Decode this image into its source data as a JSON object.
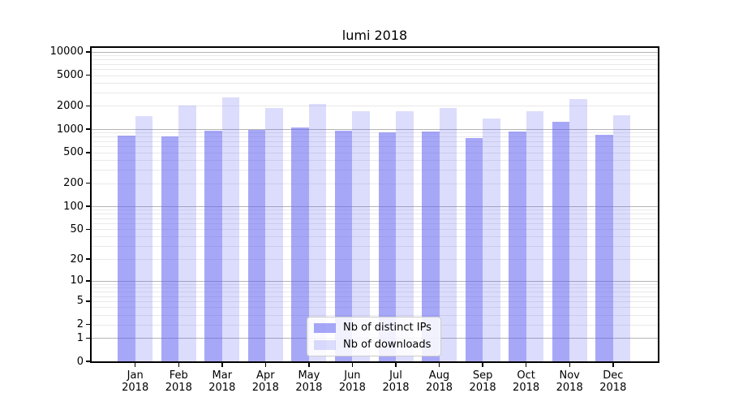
{
  "chart_data": {
    "type": "bar",
    "title": "lumi 2018",
    "xlabel": "",
    "ylabel": "",
    "x_tick_labels": [
      {
        "line1": "Jan",
        "line2": "2018"
      },
      {
        "line1": "Feb",
        "line2": "2018"
      },
      {
        "line1": "Mar",
        "line2": "2018"
      },
      {
        "line1": "Apr",
        "line2": "2018"
      },
      {
        "line1": "May",
        "line2": "2018"
      },
      {
        "line1": "Jun",
        "line2": "2018"
      },
      {
        "line1": "Jul",
        "line2": "2018"
      },
      {
        "line1": "Aug",
        "line2": "2018"
      },
      {
        "line1": "Sep",
        "line2": "2018"
      },
      {
        "line1": "Oct",
        "line2": "2018"
      },
      {
        "line1": "Nov",
        "line2": "2018"
      },
      {
        "line1": "Dec",
        "line2": "2018"
      }
    ],
    "categories": [
      "Jan 2018",
      "Feb 2018",
      "Mar 2018",
      "Apr 2018",
      "May 2018",
      "Jun 2018",
      "Jul 2018",
      "Aug 2018",
      "Sep 2018",
      "Oct 2018",
      "Nov 2018",
      "Dec 2018"
    ],
    "series": [
      {
        "name": "Nb of distinct IPs",
        "color": "rgba(94,94,242,0.55)",
        "values": [
          820,
          800,
          950,
          975,
          1065,
          950,
          920,
          930,
          765,
          930,
          1255,
          855
        ]
      },
      {
        "name": "Nb of downloads",
        "color": "rgba(94,94,242,0.22)",
        "values": [
          1490,
          2030,
          2590,
          1860,
          2130,
          1715,
          1690,
          1860,
          1370,
          1715,
          2450,
          1520
        ]
      }
    ],
    "y_axis": {
      "scale": "symlog-like log10(1+v)",
      "ticks": [
        0,
        1,
        2,
        5,
        10,
        20,
        50,
        100,
        200,
        500,
        1000,
        2000,
        5000,
        10000
      ],
      "ylim": [
        0,
        11300
      ],
      "major_gridline_values": [
        1,
        10,
        100,
        1000,
        10000
      ],
      "grid": true
    },
    "legend": {
      "position": "lower center",
      "entries": [
        "Nb of distinct IPs",
        "Nb of downloads"
      ]
    },
    "colors": {
      "bar_dark_rendered": "#a8a8f8",
      "bar_light_rendered": "#dcdcfa",
      "grid_major": "#b4b4b4",
      "grid_minor": "#e9e9e9",
      "axis_frame": "#000000"
    }
  }
}
